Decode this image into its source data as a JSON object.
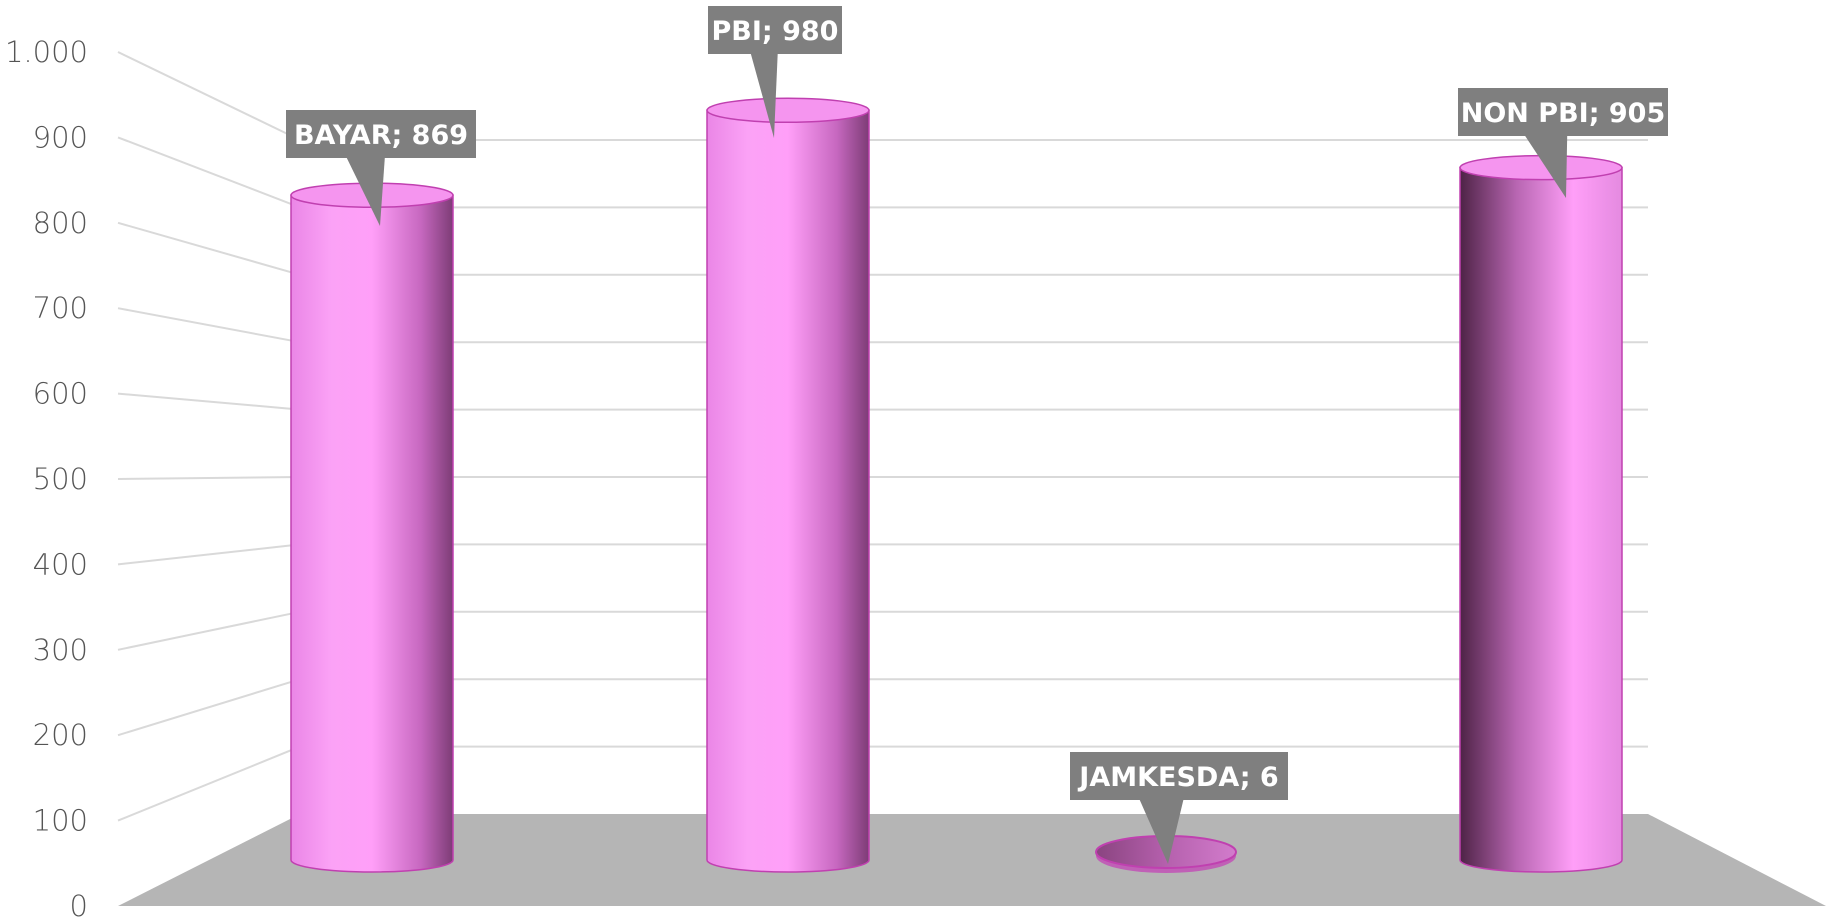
{
  "chart_data": {
    "type": "bar",
    "style": "3d-cylinder",
    "categories": [
      "BAYAR",
      "PBI",
      "JAMKESDA",
      "NON PBI"
    ],
    "values": [
      869,
      980,
      6,
      905
    ],
    "data_labels": [
      "BAYAR; 869",
      "PBI; 980",
      "JAMKESDA; 6",
      "NON PBI; 905"
    ],
    "title": "",
    "xlabel": "",
    "ylabel": "",
    "ylim": [
      0,
      1000
    ],
    "yticks": [
      0,
      100,
      200,
      300,
      400,
      500,
      600,
      700,
      800,
      900,
      1000
    ],
    "ytick_labels": [
      "0",
      "100",
      "200",
      "300",
      "400",
      "500",
      "600",
      "700",
      "800",
      "900",
      "1.000"
    ],
    "grid": true,
    "legend": "none",
    "colors": {
      "bar_light": "#ff9ff8",
      "bar_mid": "#e07fe0",
      "bar_dark": "#6e3566",
      "bar_outline": "#c040b0",
      "floor": "#b5b5b5",
      "label_bg": "#7f7f7f",
      "label_text": "#ffffff",
      "grid": "#d9d9d9",
      "tick_text": "#555555"
    }
  }
}
